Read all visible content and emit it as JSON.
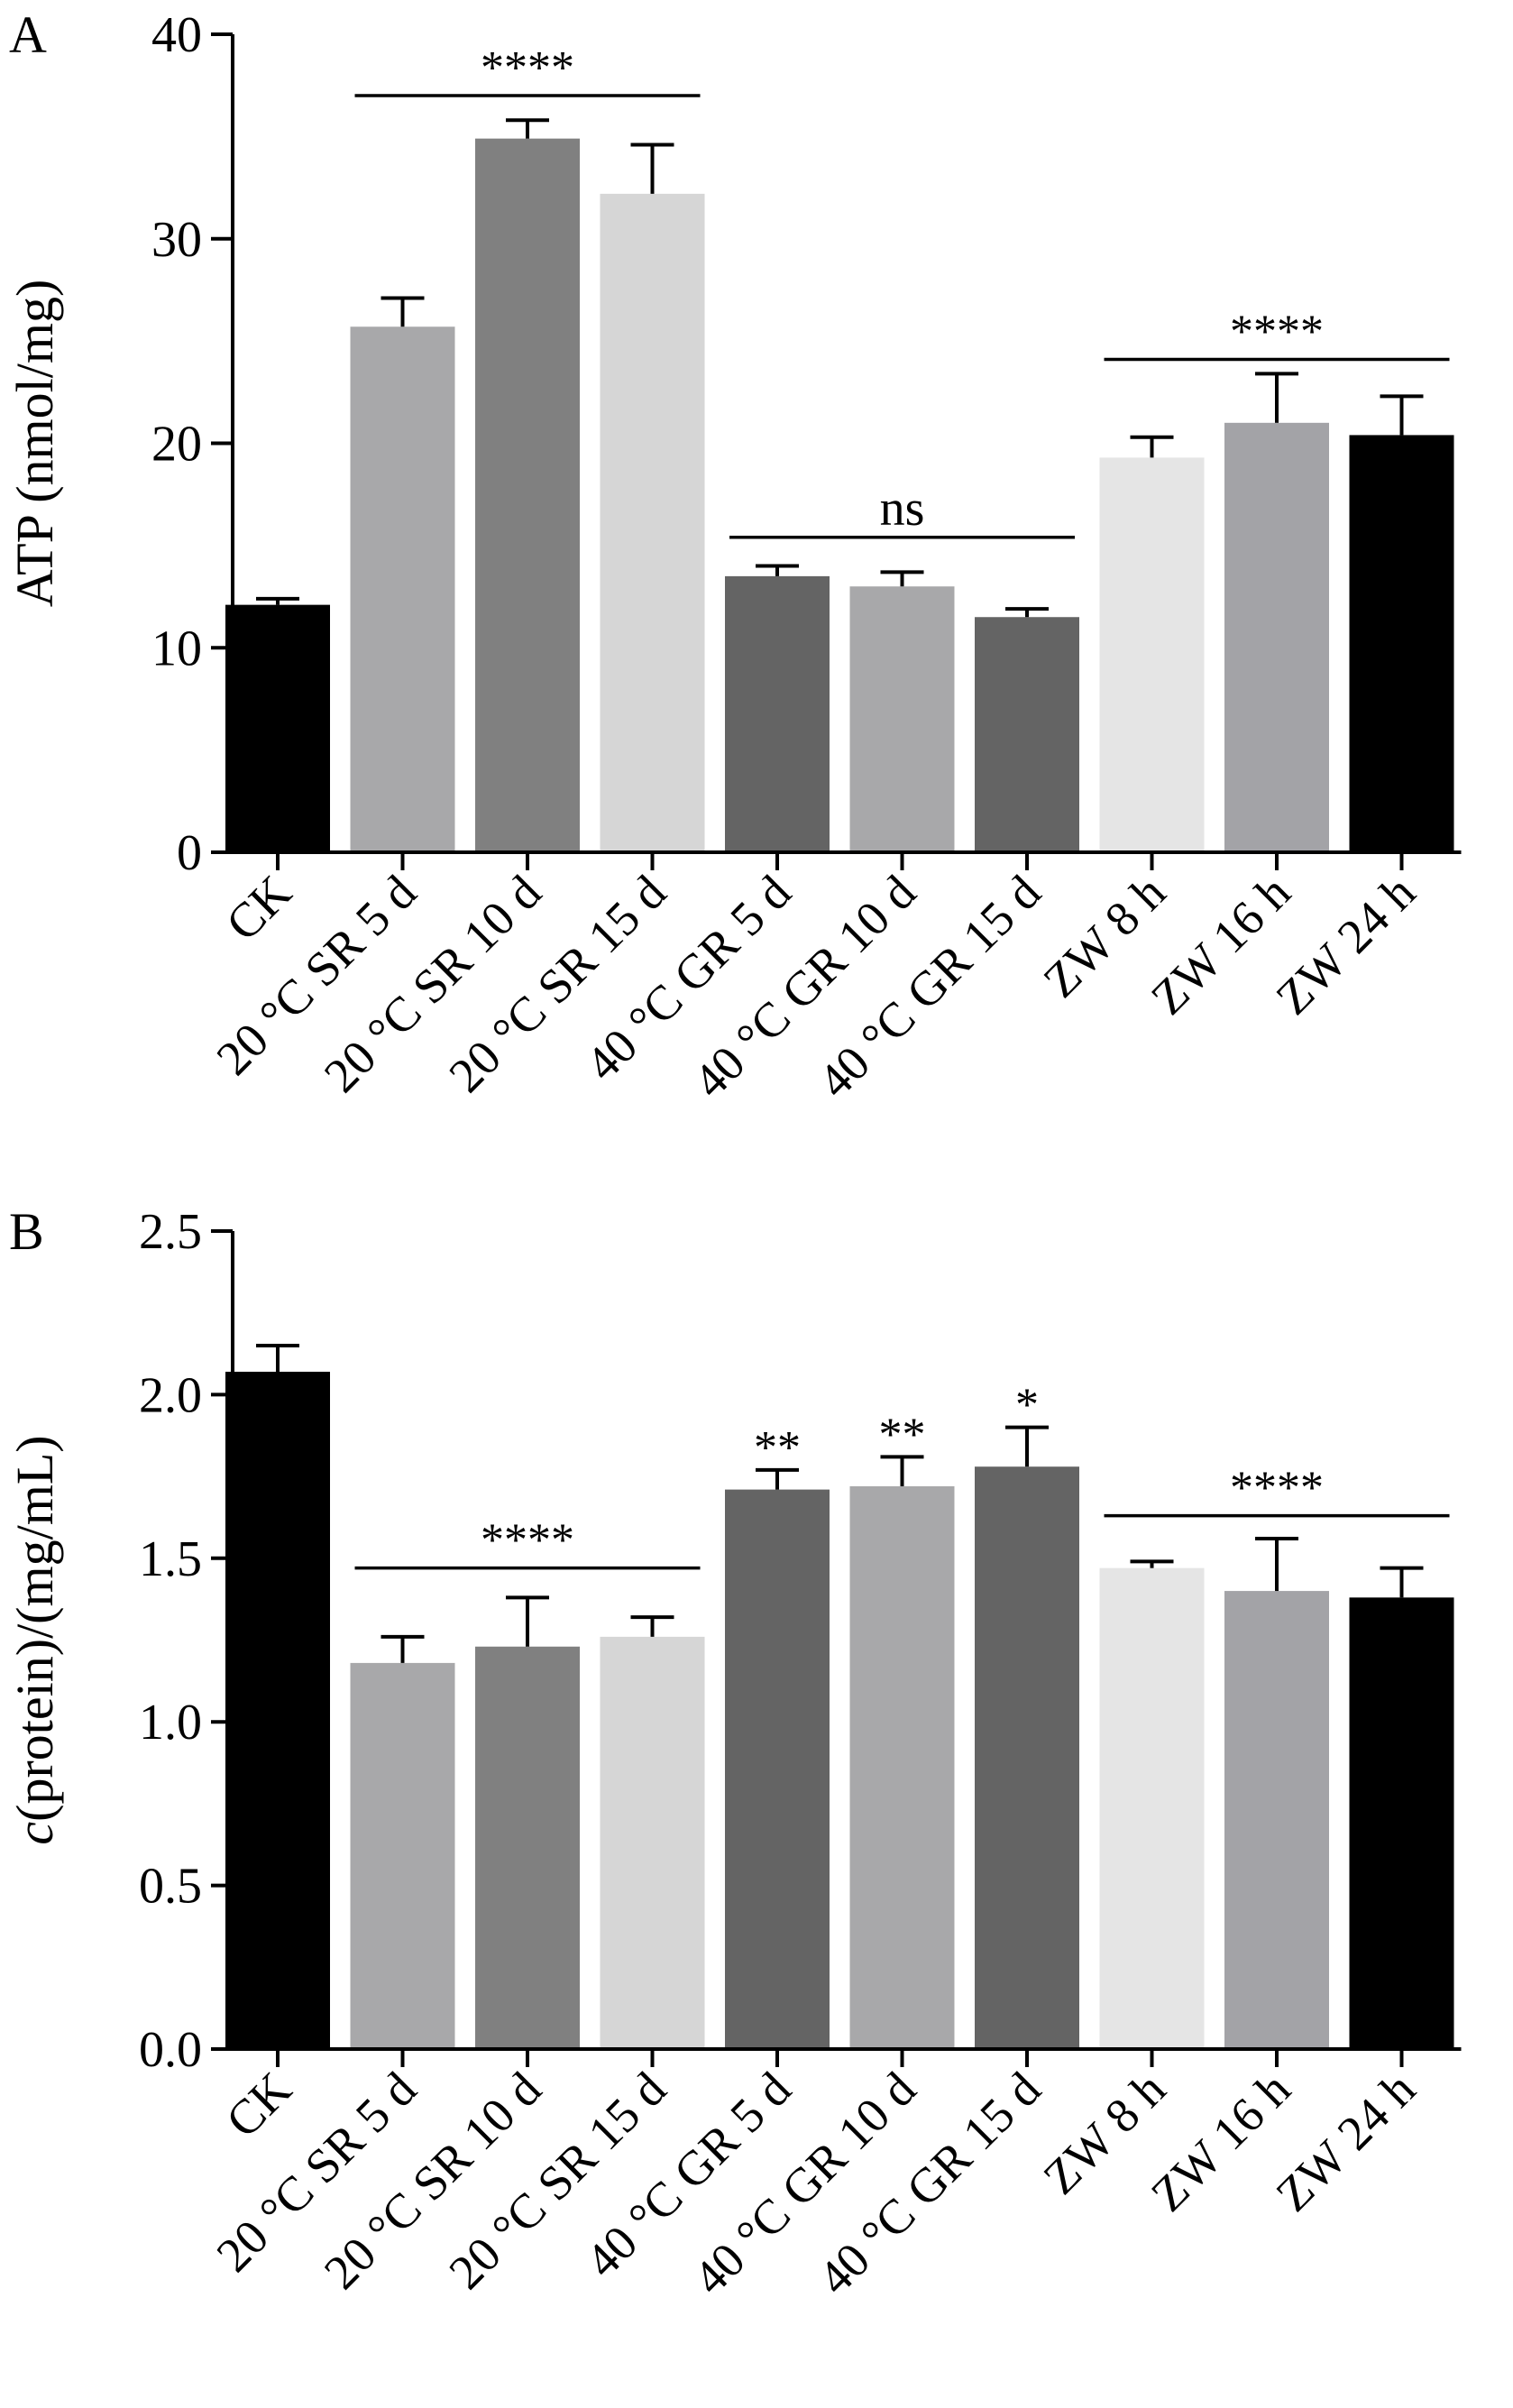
{
  "chart_data": [
    {
      "panel": "A",
      "type": "bar",
      "ylabel": "ATP (nmol/mg)",
      "ylim": [
        0,
        40
      ],
      "yticks": [
        0,
        10,
        20,
        30,
        40
      ],
      "categories": [
        "CK",
        "20 °C SR 5 d",
        "20 °C SR 10 d",
        "20 °C SR 15 d",
        "40 °C GR 5 d",
        "40 °C GR 10 d",
        "40 °C GR 15 d",
        "ZW 8 h",
        "ZW 16 h",
        "ZW 24 h"
      ],
      "values": [
        12.1,
        25.7,
        34.9,
        32.2,
        13.5,
        13.0,
        11.5,
        19.3,
        21.0,
        20.4
      ],
      "errors": [
        0.3,
        1.4,
        0.9,
        2.4,
        0.5,
        0.7,
        0.4,
        1.0,
        2.4,
        1.9
      ],
      "colors": [
        "#000000",
        "#a8a8aa",
        "#808080",
        "#d6d6d6",
        "#646464",
        "#a8a8aa",
        "#646464",
        "#e5e5e5",
        "#a3a3a7",
        "#000000"
      ],
      "annotations": [
        {
          "text": "****",
          "from": 1,
          "to": 3,
          "y": 37.0
        },
        {
          "text": "ns",
          "from": 4,
          "to": 6,
          "y": 15.4
        },
        {
          "text": "****",
          "from": 7,
          "to": 9,
          "y": 24.1
        }
      ]
    },
    {
      "panel": "B",
      "type": "bar",
      "ylabel_italic": "c",
      "ylabel_rest": "(protein)/(mg/mL)",
      "ylim": [
        0,
        2.5
      ],
      "yticks": [
        "0.0",
        "0.5",
        "1.0",
        "1.5",
        "2.0",
        "2.5"
      ],
      "categories": [
        "CK",
        "20 °C SR 5 d",
        "20 °C SR 10 d",
        "20 °C SR 15 d",
        "40 °C GR 5 d",
        "40 °C GR 10 d",
        "40 °C GR 15 d",
        "ZW 8 h",
        "ZW 16 h",
        "ZW 24 h"
      ],
      "values": [
        2.07,
        1.18,
        1.23,
        1.26,
        1.71,
        1.72,
        1.78,
        1.47,
        1.4,
        1.38
      ],
      "errors": [
        0.08,
        0.08,
        0.15,
        0.06,
        0.06,
        0.09,
        0.12,
        0.02,
        0.16,
        0.09
      ],
      "colors": [
        "#000000",
        "#a8a8aa",
        "#808080",
        "#d6d6d6",
        "#646464",
        "#a8a8aa",
        "#646464",
        "#e5e5e5",
        "#a3a3a7",
        "#000000"
      ],
      "annotations": [
        {
          "text": "****",
          "from": 1,
          "to": 3,
          "y": 1.47
        },
        {
          "text": "**",
          "from": 4,
          "to": 4,
          "y": null
        },
        {
          "text": "**",
          "from": 5,
          "to": 5,
          "y": null
        },
        {
          "text": "*",
          "from": 6,
          "to": 6,
          "y": null
        },
        {
          "text": "****",
          "from": 7,
          "to": 9,
          "y": 1.63
        }
      ]
    }
  ]
}
